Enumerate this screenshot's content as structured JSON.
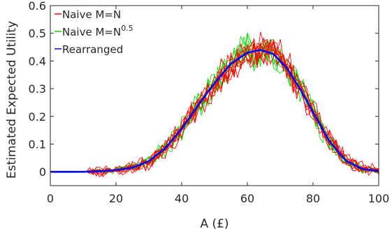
{
  "chart_data": {
    "type": "line",
    "xlabel": "A (£)",
    "ylabel": "Estimated Expected Utility",
    "xlim": [
      0,
      100
    ],
    "ylim": [
      -0.05,
      0.6
    ],
    "x_ticks": [
      "0",
      "20",
      "40",
      "60",
      "80",
      "100"
    ],
    "y_ticks": [
      "0",
      "0.1",
      "0.2",
      "0.3",
      "0.4",
      "0.5",
      "0.6"
    ],
    "grid": false,
    "legend_position": "top-left",
    "series": [
      {
        "name": "Naive M=N",
        "legend_label_base": "Naive M=N",
        "legend_sup": "",
        "color": "#ff0000",
        "noisy_runs": 8,
        "x": [
          0,
          10,
          15,
          20,
          25,
          30,
          35,
          40,
          45,
          50,
          55,
          60,
          64,
          68,
          72,
          76,
          80,
          85,
          90,
          95,
          100
        ],
        "y": [
          0,
          0,
          0.002,
          0.006,
          0.015,
          0.038,
          0.085,
          0.155,
          0.24,
          0.32,
          0.39,
          0.43,
          0.44,
          0.425,
          0.375,
          0.3,
          0.215,
          0.11,
          0.04,
          0.01,
          0.003
        ]
      },
      {
        "name": "Naive M=N^0.5",
        "legend_label_base": "Naive M=N",
        "legend_sup": "0.5",
        "color": "#00e000",
        "noisy_runs": 8,
        "x": [
          0,
          10,
          15,
          20,
          25,
          30,
          35,
          40,
          45,
          50,
          55,
          60,
          64,
          68,
          72,
          76,
          80,
          85,
          90,
          95,
          100
        ],
        "y": [
          0,
          0,
          0.002,
          0.006,
          0.015,
          0.038,
          0.085,
          0.155,
          0.24,
          0.32,
          0.39,
          0.43,
          0.44,
          0.425,
          0.375,
          0.3,
          0.215,
          0.11,
          0.04,
          0.01,
          0.003
        ]
      },
      {
        "name": "Rearranged",
        "legend_label_base": "Rearranged",
        "legend_sup": "",
        "color": "#0000ff",
        "noisy_runs": 0,
        "x": [
          0,
          10,
          15,
          20,
          25,
          30,
          35,
          40,
          45,
          50,
          55,
          60,
          64,
          68,
          72,
          76,
          80,
          85,
          90,
          95,
          100
        ],
        "y": [
          0,
          0,
          0.002,
          0.006,
          0.015,
          0.038,
          0.085,
          0.155,
          0.24,
          0.32,
          0.39,
          0.43,
          0.44,
          0.425,
          0.375,
          0.3,
          0.215,
          0.11,
          0.04,
          0.01,
          0.003
        ]
      }
    ]
  }
}
